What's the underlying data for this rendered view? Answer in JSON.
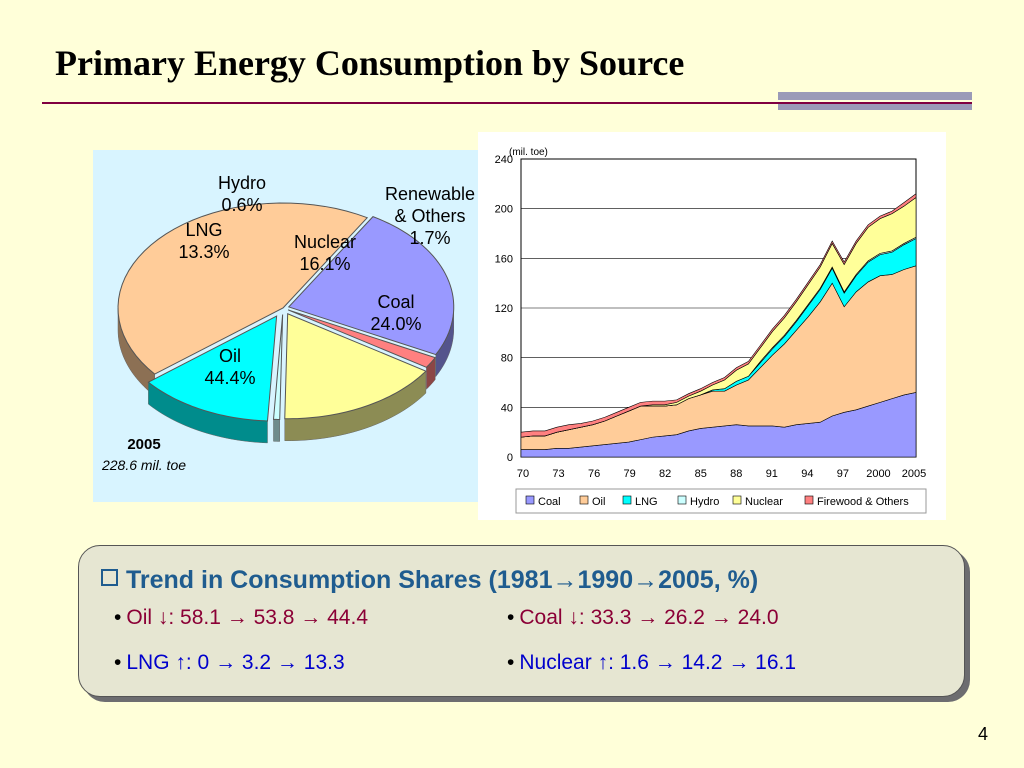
{
  "slide": {
    "title": "Primary Energy Consumption by Source",
    "page_number": "4"
  },
  "pie": {
    "year": "2005",
    "total": "228.6 mil. toe"
  },
  "area_chart": {
    "unit_label": "(mil. toe)"
  },
  "chart_data": [
    {
      "type": "pie",
      "slices": [
        {
          "label": "Coal",
          "value": 24.0,
          "value_label": "24.0%",
          "color": "#9999ff"
        },
        {
          "label": "Oil",
          "value": 44.4,
          "value_label": "44.4%",
          "color": "#ffcc99"
        },
        {
          "label": "LNG",
          "value": 13.3,
          "value_label": "13.3%",
          "color": "#00ffff"
        },
        {
          "label": "Hydro",
          "value": 0.6,
          "value_label": "0.6%",
          "color": "#ccffff"
        },
        {
          "label": "Nuclear",
          "value": 16.1,
          "value_label": "16.1%",
          "color": "#ffff99"
        },
        {
          "label": "Renewable & Others",
          "label_lines": [
            "Renewable",
            "& Others"
          ],
          "value": 1.7,
          "value_label": "1.7%",
          "color": "#ff8080"
        }
      ]
    },
    {
      "type": "area",
      "stacked": true,
      "ylim": [
        0,
        240
      ],
      "yticks": [
        0,
        40,
        80,
        120,
        160,
        200,
        240
      ],
      "x_tick_labels": [
        "70",
        "73",
        "76",
        "79",
        "82",
        "85",
        "88",
        "91",
        "94",
        "97",
        "2000",
        "2005"
      ],
      "legend_position": "bottom",
      "series": [
        {
          "name": "Coal",
          "color": "#9999ff",
          "values": [
            6,
            6,
            6,
            7,
            7,
            8,
            9,
            10,
            11,
            12,
            14,
            16,
            17,
            18,
            21,
            23,
            24,
            25,
            26,
            25,
            25,
            25,
            24,
            26,
            27,
            28,
            33,
            36,
            38,
            41,
            44,
            47,
            50,
            52
          ]
        },
        {
          "name": "Oil",
          "color": "#ffcc99",
          "values": [
            10,
            11,
            11,
            13,
            15,
            16,
            17,
            19,
            22,
            25,
            27,
            25,
            24,
            24,
            26,
            27,
            29,
            28,
            32,
            37,
            47,
            57,
            67,
            76,
            86,
            97,
            107,
            85,
            95,
            100,
            102,
            100,
            101,
            102
          ]
        },
        {
          "name": "LNG",
          "color": "#00ffff",
          "values": [
            0,
            0,
            0,
            0,
            0,
            0,
            0,
            0,
            0,
            0,
            0,
            0,
            0,
            0,
            0,
            0,
            1,
            2,
            3,
            3,
            4,
            5,
            6,
            7,
            9,
            10,
            12,
            11,
            13,
            16,
            17,
            18,
            20,
            22
          ]
        },
        {
          "name": "Hydro",
          "color": "#ccffff",
          "values": [
            0,
            0,
            0,
            0,
            0,
            0,
            0,
            0,
            0,
            0,
            0,
            0,
            0,
            0,
            0,
            0,
            0,
            0,
            0,
            0,
            1,
            1,
            1,
            1,
            1,
            1,
            1,
            1,
            1,
            1,
            1,
            1,
            1,
            1
          ]
        },
        {
          "name": "Nuclear",
          "color": "#ffff99",
          "values": [
            0,
            0,
            0,
            0,
            0,
            0,
            0,
            0,
            0,
            0,
            0,
            1,
            1,
            2,
            2,
            3,
            4,
            7,
            9,
            10,
            11,
            13,
            14,
            15,
            16,
            17,
            19,
            22,
            25,
            27,
            28,
            30,
            30,
            32
          ]
        },
        {
          "name": "Firewood & Others",
          "color": "#ff8080",
          "values": [
            4,
            4,
            4,
            4,
            4,
            3,
            3,
            3,
            3,
            3,
            3,
            3,
            3,
            2,
            2,
            2,
            2,
            2,
            2,
            2,
            2,
            2,
            2,
            2,
            2,
            2,
            2,
            2,
            2,
            2,
            2,
            2,
            3,
            3
          ]
        }
      ]
    }
  ],
  "trend": {
    "title": "Trend in Consumption Shares (1981→1990→2005, %)",
    "items": [
      {
        "label": "Oil",
        "arrow": "↓",
        "values": ": 58.1 → 53.8 → 44.4"
      },
      {
        "label": "Coal",
        "arrow": "↓",
        "values": ": 33.3 → 26.2 → 24.0"
      },
      {
        "label": "LNG",
        "arrow": "↑",
        "values": ": 0 → 3.2 → 13.3"
      },
      {
        "label": "Nuclear",
        "arrow": "↑",
        "values": ": 1.6 → 14.2 → 16.1"
      }
    ]
  }
}
